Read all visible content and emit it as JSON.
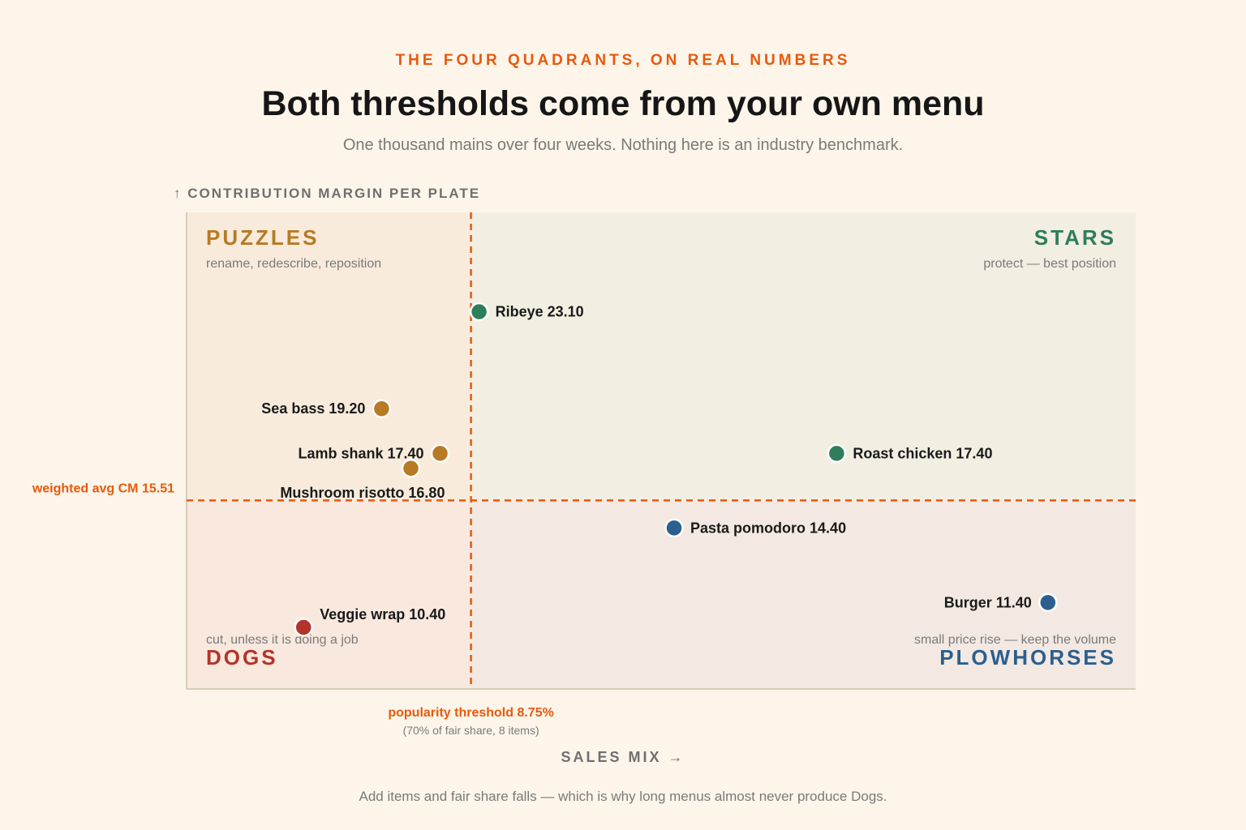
{
  "header": {
    "eyebrow": "THE FOUR QUADRANTS, ON REAL NUMBERS",
    "title": "Both thresholds come from your own menu",
    "subtitle": "One thousand mains over four weeks. Nothing here is an industry benchmark."
  },
  "footer": {
    "note": "Add items and fair share falls — which is why long menus almost never produce Dogs."
  },
  "colors": {
    "accent": "#e8590c",
    "stars": "#2e7d5b",
    "puzzles": "#b87a24",
    "plowhorses": "#2b5f8e",
    "dogs": "#b3342b"
  },
  "chart_data": {
    "type": "scatter",
    "xlabel": "SALES MIX →",
    "ylabel": "↑ CONTRIBUTION MARGIN PER PLATE",
    "xlim": [
      0,
      29.2
    ],
    "ylim": [
      7.92,
      27.1
    ],
    "grid": false,
    "thresholds": {
      "x": {
        "value": 8.75,
        "label": "popularity threshold 8.75%",
        "note": "(70% of fair share, 8 items)"
      },
      "y": {
        "value": 15.51,
        "label": "weighted avg CM 15.51"
      }
    },
    "quadrants": [
      {
        "key": "puzzles",
        "name": "PUZZLES",
        "note": "rename, redescribe, reposition"
      },
      {
        "key": "stars",
        "name": "STARS",
        "note": "protect — best position"
      },
      {
        "key": "dogs",
        "name": "DOGS",
        "note": "cut, unless it is doing a job"
      },
      {
        "key": "plowhorses",
        "name": "PLOWHORSES",
        "note": "small price rise — keep the volume"
      }
    ],
    "points": [
      {
        "label": "Ribeye 23.10",
        "x": 9.0,
        "y": 23.1,
        "quadrant": "stars"
      },
      {
        "label": "Sea bass 19.20",
        "x": 6.0,
        "y": 19.2,
        "quadrant": "puzzles"
      },
      {
        "label": "Lamb shank 17.40",
        "x": 7.8,
        "y": 17.4,
        "quadrant": "puzzles"
      },
      {
        "label": "Mushroom risotto 16.80",
        "x": 6.9,
        "y": 16.8,
        "quadrant": "puzzles"
      },
      {
        "label": "Roast chicken 17.40",
        "x": 20.0,
        "y": 17.4,
        "quadrant": "stars"
      },
      {
        "label": "Pasta pomodoro 14.40",
        "x": 15.0,
        "y": 14.4,
        "quadrant": "plowhorses"
      },
      {
        "label": "Burger 11.40",
        "x": 26.5,
        "y": 11.4,
        "quadrant": "plowhorses"
      },
      {
        "label": "Veggie wrap 10.40",
        "x": 3.6,
        "y": 10.4,
        "quadrant": "dogs"
      }
    ]
  }
}
